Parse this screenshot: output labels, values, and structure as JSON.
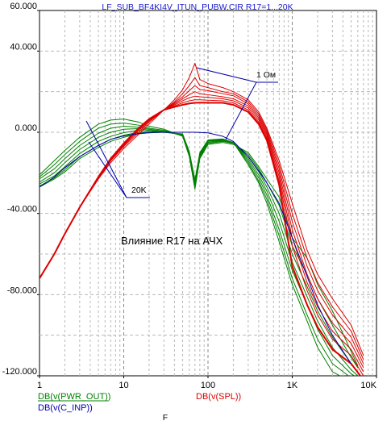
{
  "chart_data": {
    "type": "line",
    "title": "LF_SUB_BF4KI4V_ITUN_PUBW.CIR R17=1...20K",
    "xlabel": "F",
    "xscale": "log",
    "xlim": [
      1,
      10000
    ],
    "ylim": [
      -120,
      60
    ],
    "grid": true,
    "x_ticks": [
      {
        "value": 1,
        "label": "1"
      },
      {
        "value": 10,
        "label": "10"
      },
      {
        "value": 100,
        "label": "100"
      },
      {
        "value": 1000,
        "label": "1K"
      },
      {
        "value": 10000,
        "label": "10K"
      }
    ],
    "y_ticks": [
      {
        "value": 60,
        "label": "60.000"
      },
      {
        "value": 40,
        "label": "40.000"
      },
      {
        "value": 0,
        "label": "0.000"
      },
      {
        "value": -40,
        "label": "-40.000"
      },
      {
        "value": -80,
        "label": "-80.000"
      },
      {
        "value": -120,
        "label": "-120.000"
      }
    ],
    "legend": [
      {
        "text": "DB(v(PWR_OUT))",
        "color": "#008000"
      },
      {
        "text": "DB(v(C_INP))",
        "color": "#0000aa"
      },
      {
        "text": "DB(v(SPL))",
        "color": "#dd0000"
      }
    ],
    "annotations": {
      "label_1ohm": "1 Ом",
      "label_20k": "20K",
      "caption": "Влияние R17 на АЧХ"
    },
    "colors": {
      "green": "#008000",
      "blue": "#0000aa",
      "red": "#dd0000",
      "title": "#1a1acc"
    },
    "blue_series": {
      "name": "DB(v(C_INP))",
      "x": [
        1,
        1.5,
        2,
        3,
        5,
        7,
        10,
        15,
        20,
        30,
        50,
        70,
        100,
        150,
        200,
        300,
        400,
        500,
        700,
        1000,
        1500,
        2000,
        3000,
        5000
      ],
      "y": [
        -27,
        -22,
        -17.5,
        -12,
        -6.5,
        -3.5,
        -1.8,
        -0.6,
        -0.1,
        0,
        0,
        0,
        -0.3,
        -2,
        -4.5,
        -12,
        -19,
        -25,
        -35,
        -52,
        -71,
        -85,
        -100,
        -114
      ]
    },
    "green_series": [
      {
        "name": "",
        "x": [
          1,
          1.5,
          2,
          3,
          5,
          7,
          10,
          15,
          20,
          30,
          50,
          60,
          70,
          80,
          100,
          150,
          200,
          300,
          400,
          500,
          700,
          1000,
          1500,
          2000,
          3000,
          5000,
          6000
        ],
        "y": [
          -21,
          -14,
          -9,
          -2.5,
          4,
          6,
          6.5,
          5,
          3,
          1.5,
          -2,
          -12,
          -28,
          -13,
          -6,
          -5,
          -6,
          -10,
          -17,
          -23,
          -32,
          -52,
          -62,
          -75,
          -88,
          -108,
          -115
        ]
      },
      {
        "name": "",
        "x": [
          1,
          1.5,
          2,
          3,
          5,
          7,
          10,
          15,
          20,
          30,
          50,
          60,
          70,
          80,
          100,
          150,
          200,
          300,
          400,
          500,
          700,
          1000,
          1500,
          2000,
          3000,
          5000,
          6000
        ],
        "y": [
          -22,
          -16,
          -11,
          -4.5,
          2,
          4,
          4.5,
          3.5,
          2,
          1,
          -1.8,
          -11.5,
          -27,
          -12.5,
          -5.5,
          -4.5,
          -5.5,
          -11,
          -18,
          -25,
          -36,
          -56,
          -70,
          -82,
          -95,
          -111,
          -116
        ]
      },
      {
        "name": "",
        "x": [
          1,
          1.5,
          2,
          3,
          5,
          7,
          10,
          15,
          20,
          30,
          50,
          60,
          70,
          80,
          100,
          150,
          200,
          300,
          400,
          500,
          700,
          1000,
          1500,
          2000,
          3000,
          5000,
          6000
        ],
        "y": [
          -23,
          -18,
          -13,
          -6.5,
          -0.5,
          2,
          3,
          2.5,
          1.5,
          0.5,
          -1.6,
          -11,
          -26,
          -12,
          -5,
          -4.2,
          -5.2,
          -12,
          -19.5,
          -27,
          -40,
          -60,
          -76,
          -88,
          -101,
          -114,
          -118
        ]
      },
      {
        "name": "",
        "x": [
          1,
          1.5,
          2,
          3,
          5,
          7,
          10,
          15,
          20,
          30,
          50,
          60,
          70,
          80,
          100,
          150,
          200,
          300,
          400,
          500,
          700,
          1000,
          1500,
          2000,
          3000,
          5000,
          6000
        ],
        "y": [
          -24.5,
          -20,
          -15,
          -8.5,
          -2.5,
          0,
          1.5,
          1.8,
          1,
          0.3,
          -1.4,
          -10.5,
          -25,
          -11.5,
          -4.5,
          -4,
          -5,
          -13,
          -21,
          -29,
          -44,
          -64,
          -81,
          -93,
          -106,
          -117,
          -120
        ]
      },
      {
        "name": "",
        "x": [
          1,
          1.5,
          2,
          3,
          5,
          7,
          10,
          15,
          20,
          30,
          50,
          60,
          70,
          80,
          100,
          150,
          200,
          300,
          400,
          500,
          700,
          1000,
          1500,
          2000,
          3000,
          5000,
          6000
        ],
        "y": [
          -25.5,
          -21.5,
          -17,
          -10.5,
          -4.5,
          -2,
          -0.2,
          1,
          0.5,
          0.1,
          -1.2,
          -10,
          -24.5,
          -11,
          -4.2,
          -3.8,
          -5,
          -14,
          -22.5,
          -31,
          -48,
          -68,
          -85,
          -97,
          -110,
          -119,
          -121
        ]
      },
      {
        "name": "",
        "x": [
          1,
          1.5,
          2,
          3,
          5,
          7,
          10,
          15,
          20,
          30,
          50,
          60,
          70,
          80,
          100,
          150,
          200,
          300,
          400,
          500,
          700,
          1000,
          1500,
          2000,
          3000,
          5000,
          6000
        ],
        "y": [
          -26.5,
          -22.5,
          -18.5,
          -12,
          -6.5,
          -3.5,
          -1.5,
          0,
          0,
          0,
          -1,
          -10,
          -24,
          -10.5,
          -4,
          -3.5,
          -5,
          -15,
          -24,
          -33,
          -51,
          -72,
          -90,
          -102,
          -114,
          -121,
          -123
        ]
      },
      {
        "name": "",
        "x": [
          1,
          1.5,
          2,
          3,
          5,
          7,
          10,
          15,
          20,
          30,
          50,
          60,
          70,
          80,
          100,
          150,
          200,
          300,
          400,
          500,
          700,
          1000,
          1500,
          2000,
          3000,
          5000,
          6000
        ],
        "y": [
          -27,
          -23,
          -19.5,
          -13,
          -7.5,
          -4.5,
          -2.5,
          -0.8,
          -0.3,
          0,
          -0.8,
          -9.5,
          -23.5,
          -10,
          -3.8,
          -3.3,
          -5,
          -16,
          -25,
          -35,
          -54,
          -75,
          -93,
          -106,
          -118,
          -123,
          -125
        ]
      }
    ],
    "red_series": [
      {
        "name": "",
        "x": [
          1,
          1.5,
          2,
          3,
          5,
          7,
          10,
          15,
          20,
          30,
          40,
          50,
          60,
          70,
          80,
          100,
          150,
          200,
          300,
          400,
          500,
          700,
          1000,
          1500,
          2000,
          3000,
          5000,
          7000
        ],
        "y": [
          -72,
          -60,
          -50,
          -37,
          -23,
          -15,
          -8,
          -1,
          4,
          11,
          16,
          21,
          27,
          34,
          26,
          24,
          22,
          20,
          16,
          10,
          2,
          -14,
          -35,
          -58,
          -70,
          -82,
          -95,
          -110
        ]
      },
      {
        "name": "",
        "x": [
          1,
          1.5,
          2,
          3,
          5,
          7,
          10,
          15,
          20,
          30,
          40,
          50,
          60,
          70,
          80,
          100,
          150,
          200,
          300,
          400,
          500,
          700,
          1000,
          1500,
          2000,
          3000,
          5000,
          7000
        ],
        "y": [
          -72,
          -60,
          -50,
          -37,
          -23,
          -14,
          -7,
          0,
          5,
          11,
          15,
          19,
          23,
          27,
          23,
          22,
          20,
          19,
          15,
          9,
          1,
          -16,
          -40,
          -62,
          -74,
          -86,
          -98,
          -112
        ]
      },
      {
        "name": "",
        "x": [
          1,
          1.5,
          2,
          3,
          5,
          7,
          10,
          15,
          20,
          30,
          40,
          50,
          60,
          70,
          80,
          100,
          150,
          200,
          300,
          400,
          500,
          700,
          1000,
          1500,
          2000,
          3000,
          5000,
          7000
        ],
        "y": [
          -72,
          -60,
          -50,
          -37,
          -22.5,
          -14,
          -6.5,
          1,
          5.5,
          11,
          14.5,
          17.5,
          20.5,
          23,
          21,
          20.5,
          19,
          18,
          14,
          8,
          0,
          -18,
          -44,
          -66,
          -78,
          -90,
          -101,
          -114
        ]
      },
      {
        "name": "",
        "x": [
          1,
          1.5,
          2,
          3,
          5,
          7,
          10,
          15,
          20,
          30,
          40,
          50,
          60,
          70,
          80,
          100,
          150,
          200,
          300,
          400,
          500,
          700,
          1000,
          1500,
          2000,
          3000,
          5000,
          7000
        ],
        "y": [
          -72,
          -60,
          -50,
          -37,
          -22.5,
          -13.5,
          -6,
          1.5,
          6,
          11,
          14,
          16.5,
          18.5,
          20,
          19,
          18.5,
          17.5,
          16.5,
          13,
          7,
          -1,
          -20,
          -48,
          -70,
          -82,
          -94,
          -104,
          -116
        ]
      },
      {
        "name": "",
        "x": [
          1,
          1.5,
          2,
          3,
          5,
          7,
          10,
          15,
          20,
          30,
          40,
          50,
          60,
          70,
          80,
          100,
          150,
          200,
          300,
          400,
          500,
          700,
          1000,
          1500,
          2000,
          3000,
          5000,
          7000
        ],
        "y": [
          -72,
          -60,
          -50,
          -37,
          -22,
          -13.5,
          -6,
          2,
          6.5,
          11,
          13.5,
          15.5,
          17,
          17.8,
          17.5,
          17.2,
          16.5,
          15.5,
          12,
          6,
          -2,
          -22,
          -52,
          -74,
          -86,
          -98,
          -107,
          -118
        ]
      },
      {
        "name": "",
        "x": [
          1,
          1.5,
          2,
          3,
          5,
          7,
          10,
          15,
          20,
          30,
          40,
          50,
          60,
          70,
          80,
          100,
          150,
          200,
          300,
          400,
          500,
          700,
          1000,
          1500,
          2000,
          3000,
          5000,
          7000
        ],
        "y": [
          -72,
          -60,
          -50,
          -37,
          -22,
          -13,
          -5.5,
          2,
          6.5,
          11,
          13,
          14.5,
          15.5,
          16,
          16,
          15.8,
          15.5,
          14.5,
          11,
          5,
          -3,
          -24,
          -56,
          -78,
          -90,
          -102,
          -110,
          -120
        ]
      },
      {
        "name": "",
        "x": [
          1,
          1.5,
          2,
          3,
          5,
          7,
          10,
          15,
          20,
          30,
          40,
          50,
          60,
          70,
          80,
          100,
          150,
          200,
          300,
          400,
          500,
          700,
          1000,
          1500,
          2000,
          3000,
          5000,
          7000
        ],
        "y": [
          -72,
          -60,
          -50,
          -37,
          -22,
          -13,
          -5.5,
          2,
          6.5,
          11,
          12.5,
          13.5,
          14.2,
          14.5,
          14.6,
          14.5,
          14.5,
          13.5,
          10,
          4,
          -4,
          -26,
          -66,
          -85,
          -96,
          -107,
          -114,
          -122
        ]
      }
    ]
  }
}
